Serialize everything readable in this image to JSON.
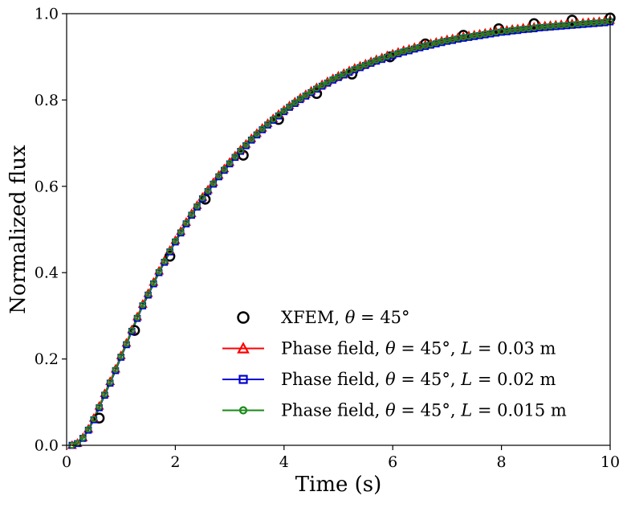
{
  "chart_data": {
    "type": "line",
    "title": "",
    "xlabel": "Time (s)",
    "ylabel": "Normalized flux",
    "xlim": [
      0,
      10
    ],
    "ylim": [
      0,
      1.0
    ],
    "xticks": [
      0,
      2,
      4,
      6,
      8,
      10
    ],
    "xtick_labels": [
      "0",
      "2",
      "4",
      "6",
      "8",
      "10"
    ],
    "yticks": [
      0,
      0.2,
      0.4,
      0.6,
      0.8,
      1.0
    ],
    "ytick_labels": [
      "0.0",
      "0.2",
      "0.4",
      "0.6",
      "0.8",
      "1.0"
    ],
    "grid": false,
    "legend_position": "lower-right",
    "x": [
      0.1,
      0.2,
      0.3,
      0.4,
      0.5,
      0.6,
      0.7,
      0.8,
      0.9,
      1.0,
      1.1,
      1.2,
      1.3,
      1.4,
      1.5,
      1.6,
      1.7,
      1.8,
      1.9,
      2.0,
      2.1,
      2.2,
      2.3,
      2.4,
      2.5,
      2.6,
      2.7,
      2.8,
      2.9,
      3.0,
      3.1,
      3.2,
      3.3,
      3.4,
      3.5,
      3.6,
      3.7,
      3.8,
      3.9,
      4.0,
      4.1,
      4.2,
      4.3,
      4.4,
      4.5,
      4.6,
      4.7,
      4.8,
      4.9,
      5.0,
      5.1,
      5.2,
      5.3,
      5.4,
      5.5,
      5.6,
      5.7,
      5.8,
      5.9,
      6.0,
      6.1,
      6.2,
      6.3,
      6.4,
      6.5,
      6.6,
      6.7,
      6.8,
      6.9,
      7.0,
      7.1,
      7.2,
      7.3,
      7.4,
      7.5,
      7.6,
      7.7,
      7.8,
      7.9,
      8.0,
      8.1,
      8.2,
      8.3,
      8.4,
      8.5,
      8.6,
      8.7,
      8.8,
      8.9,
      9.0,
      9.1,
      9.2,
      9.3,
      9.4,
      9.5,
      9.6,
      9.7,
      9.8,
      9.9,
      10.0
    ],
    "series": [
      {
        "name": "XFEM, θ = 45°",
        "style": "markers",
        "marker": "circle",
        "color": "#000000",
        "x": [
          0.6,
          1.25,
          1.9,
          2.55,
          3.25,
          3.9,
          4.6,
          5.25,
          5.95,
          6.6,
          7.3,
          7.95,
          8.6,
          9.3,
          10.0
        ],
        "values": [
          0.063,
          0.266,
          0.438,
          0.57,
          0.672,
          0.755,
          0.815,
          0.86,
          0.9,
          0.93,
          0.95,
          0.965,
          0.977,
          0.985,
          0.99
        ]
      },
      {
        "name": "Phase field, θ = 45°, L = 0.03 m",
        "style": "line-markers",
        "marker": "triangle",
        "color": "#ff0000",
        "values": [
          0.0,
          0.005,
          0.018,
          0.038,
          0.063,
          0.091,
          0.12,
          0.148,
          0.177,
          0.208,
          0.237,
          0.268,
          0.298,
          0.327,
          0.352,
          0.378,
          0.404,
          0.428,
          0.452,
          0.475,
          0.496,
          0.517,
          0.537,
          0.556,
          0.575,
          0.592,
          0.609,
          0.626,
          0.641,
          0.656,
          0.671,
          0.685,
          0.698,
          0.711,
          0.723,
          0.735,
          0.746,
          0.757,
          0.767,
          0.777,
          0.787,
          0.796,
          0.805,
          0.813,
          0.821,
          0.829,
          0.836,
          0.843,
          0.85,
          0.856,
          0.862,
          0.868,
          0.874,
          0.879,
          0.884,
          0.889,
          0.894,
          0.898,
          0.903,
          0.907,
          0.911,
          0.915,
          0.918,
          0.922,
          0.925,
          0.928,
          0.931,
          0.934,
          0.937,
          0.94,
          0.942,
          0.945,
          0.947,
          0.949,
          0.951,
          0.953,
          0.955,
          0.957,
          0.959,
          0.961,
          0.962,
          0.964,
          0.965,
          0.967,
          0.968,
          0.969,
          0.971,
          0.972,
          0.973,
          0.974,
          0.975,
          0.976,
          0.977,
          0.978,
          0.979,
          0.98,
          0.981,
          0.982,
          0.983,
          0.985
        ]
      },
      {
        "name": "Phase field, θ = 45°, L = 0.02 m",
        "style": "line-markers",
        "marker": "square",
        "color": "#0000cc",
        "values": [
          0.0,
          0.004,
          0.016,
          0.035,
          0.059,
          0.087,
          0.116,
          0.144,
          0.173,
          0.204,
          0.233,
          0.264,
          0.294,
          0.323,
          0.348,
          0.374,
          0.4,
          0.424,
          0.448,
          0.471,
          0.492,
          0.513,
          0.533,
          0.552,
          0.571,
          0.588,
          0.605,
          0.622,
          0.637,
          0.652,
          0.667,
          0.681,
          0.694,
          0.707,
          0.719,
          0.731,
          0.742,
          0.753,
          0.763,
          0.773,
          0.783,
          0.792,
          0.801,
          0.809,
          0.817,
          0.825,
          0.832,
          0.839,
          0.846,
          0.852,
          0.858,
          0.864,
          0.87,
          0.875,
          0.88,
          0.885,
          0.89,
          0.894,
          0.899,
          0.903,
          0.907,
          0.911,
          0.914,
          0.918,
          0.921,
          0.924,
          0.927,
          0.93,
          0.933,
          0.936,
          0.938,
          0.941,
          0.943,
          0.945,
          0.947,
          0.949,
          0.951,
          0.953,
          0.955,
          0.957,
          0.958,
          0.96,
          0.961,
          0.963,
          0.964,
          0.965,
          0.967,
          0.968,
          0.969,
          0.97,
          0.971,
          0.972,
          0.973,
          0.974,
          0.975,
          0.976,
          0.977,
          0.978,
          0.979,
          0.981
        ]
      },
      {
        "name": "Phase field, θ = 45°, L = 0.015 m",
        "style": "line-markers",
        "marker": "small-circle",
        "color": "#1a8a1a",
        "values": [
          0.0,
          0.005,
          0.017,
          0.037,
          0.061,
          0.089,
          0.118,
          0.146,
          0.175,
          0.206,
          0.235,
          0.266,
          0.296,
          0.325,
          0.35,
          0.376,
          0.402,
          0.426,
          0.45,
          0.473,
          0.494,
          0.515,
          0.535,
          0.554,
          0.573,
          0.59,
          0.607,
          0.624,
          0.639,
          0.654,
          0.669,
          0.683,
          0.696,
          0.709,
          0.721,
          0.733,
          0.744,
          0.755,
          0.765,
          0.775,
          0.785,
          0.794,
          0.803,
          0.811,
          0.819,
          0.827,
          0.834,
          0.841,
          0.848,
          0.854,
          0.86,
          0.866,
          0.872,
          0.877,
          0.882,
          0.887,
          0.892,
          0.896,
          0.901,
          0.905,
          0.909,
          0.913,
          0.916,
          0.92,
          0.923,
          0.926,
          0.929,
          0.932,
          0.935,
          0.938,
          0.94,
          0.943,
          0.945,
          0.947,
          0.949,
          0.951,
          0.953,
          0.955,
          0.957,
          0.959,
          0.96,
          0.962,
          0.963,
          0.965,
          0.966,
          0.967,
          0.969,
          0.97,
          0.971,
          0.972,
          0.973,
          0.974,
          0.975,
          0.976,
          0.977,
          0.978,
          0.979,
          0.98,
          0.981,
          0.983
        ]
      }
    ],
    "legend": {
      "entries": [
        {
          "series": 0,
          "pre": "XFEM, ",
          "theta_symbol": "θ",
          "theta_value": " = 45°",
          "length_symbol": "",
          "length_value": ""
        },
        {
          "series": 1,
          "pre": "Phase field, ",
          "theta_symbol": "θ",
          "theta_value": " = 45°, ",
          "length_symbol": "L",
          "length_value": " = 0.03 m"
        },
        {
          "series": 2,
          "pre": "Phase field, ",
          "theta_symbol": "θ",
          "theta_value": " = 45°, ",
          "length_symbol": "L",
          "length_value": " = 0.02 m"
        },
        {
          "series": 3,
          "pre": "Phase field, ",
          "theta_symbol": "θ",
          "theta_value": " = 45°, ",
          "length_symbol": "L",
          "length_value": " = 0.015 m"
        }
      ]
    }
  }
}
